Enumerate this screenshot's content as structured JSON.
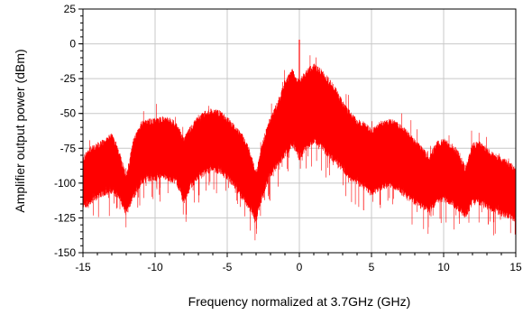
{
  "chart_data": {
    "type": "line",
    "title": "",
    "xlabel": "Frequency normalized at 3.7GHz (GHz)",
    "ylabel": "Amplifier output power (dBm)",
    "xlim": [
      -15,
      15
    ],
    "ylim": [
      -150,
      25
    ],
    "xticks": [
      -15,
      -10,
      -5,
      0,
      5,
      10,
      15
    ],
    "yticks": [
      25,
      0,
      -25,
      -50,
      -75,
      -100,
      -125,
      -150
    ],
    "grid": true,
    "series_color": "#ff0000",
    "series": [
      {
        "x": [
          -15,
          -14.5,
          -14,
          -13.5,
          -13,
          -12.5,
          -12,
          -11.5,
          -11,
          -10.5,
          -10,
          -9.5,
          -9,
          -8.5,
          -8,
          -7.5,
          -7,
          -6.5,
          -6,
          -5.5,
          -5,
          -4.5,
          -4,
          -3.5,
          -3,
          -2.5,
          -2,
          -1.5,
          -1,
          -0.5,
          0,
          0.5,
          1,
          1.5,
          2,
          2.5,
          3,
          3.5,
          4,
          4.5,
          5,
          5.5,
          6,
          6.5,
          7,
          7.5,
          8,
          8.5,
          9,
          9.5,
          10,
          10.5,
          11,
          11.5,
          12,
          12.5,
          13,
          13.5,
          14,
          14.5,
          15
        ],
        "upper": [
          -85,
          -78,
          -75,
          -72,
          -68,
          -80,
          -98,
          -72,
          -60,
          -58,
          -57,
          -56,
          -57,
          -60,
          -72,
          -62,
          -55,
          -52,
          -50,
          -52,
          -56,
          -62,
          -68,
          -78,
          -95,
          -72,
          -55,
          -45,
          -30,
          -22,
          -30,
          -22,
          -18,
          -22,
          -28,
          -35,
          -45,
          -52,
          -58,
          -60,
          -65,
          -60,
          -58,
          -58,
          -62,
          -66,
          -72,
          -78,
          -84,
          -74,
          -72,
          -75,
          -80,
          -92,
          -75,
          -74,
          -78,
          -82,
          -85,
          -88,
          -92
        ],
        "lower": [
          -115,
          -112,
          -108,
          -105,
          -104,
          -108,
          -120,
          -108,
          -98,
          -95,
          -95,
          -93,
          -95,
          -98,
          -112,
          -100,
          -95,
          -90,
          -88,
          -90,
          -94,
          -100,
          -108,
          -115,
          -125,
          -105,
          -92,
          -85,
          -78,
          -70,
          -80,
          -72,
          -68,
          -72,
          -78,
          -82,
          -88,
          -94,
          -98,
          -102,
          -106,
          -102,
          -100,
          -100,
          -104,
          -108,
          -112,
          -115,
          -118,
          -112,
          -110,
          -112,
          -116,
          -122,
          -112,
          -112,
          -115,
          -118,
          -120,
          -122,
          -125
        ]
      }
    ],
    "annotations": [
      {
        "x": 0,
        "y": 3,
        "kind": "carrier-spike"
      }
    ]
  }
}
